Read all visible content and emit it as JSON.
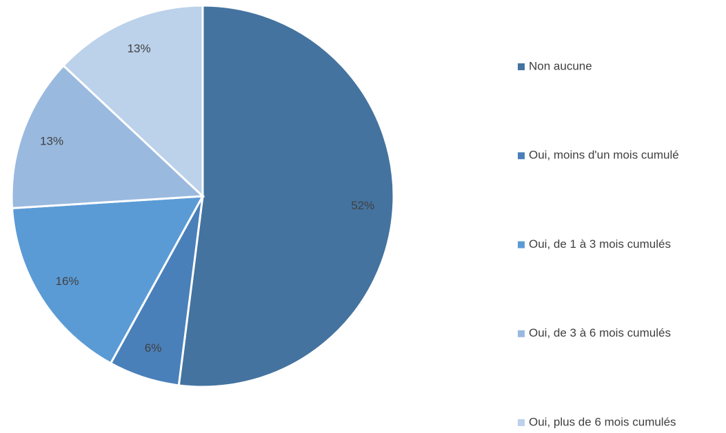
{
  "chart_data": {
    "type": "pie",
    "categories": [
      "Non aucune",
      "Oui, moins d'un mois cumulé",
      "Oui, de 1 à 3 mois cumulés",
      "Oui, de 3 à 6 mois cumulés",
      "Oui, plus de 6 mois cumulés"
    ],
    "values": [
      52,
      6,
      16,
      13,
      13
    ],
    "value_labels": [
      "52%",
      "6%",
      "16%",
      "13%",
      "13%"
    ],
    "colors": [
      "#44739f",
      "#4a80b9",
      "#5b9bd5",
      "#9ab9df",
      "#bcd1ea"
    ],
    "legend": "right"
  }
}
